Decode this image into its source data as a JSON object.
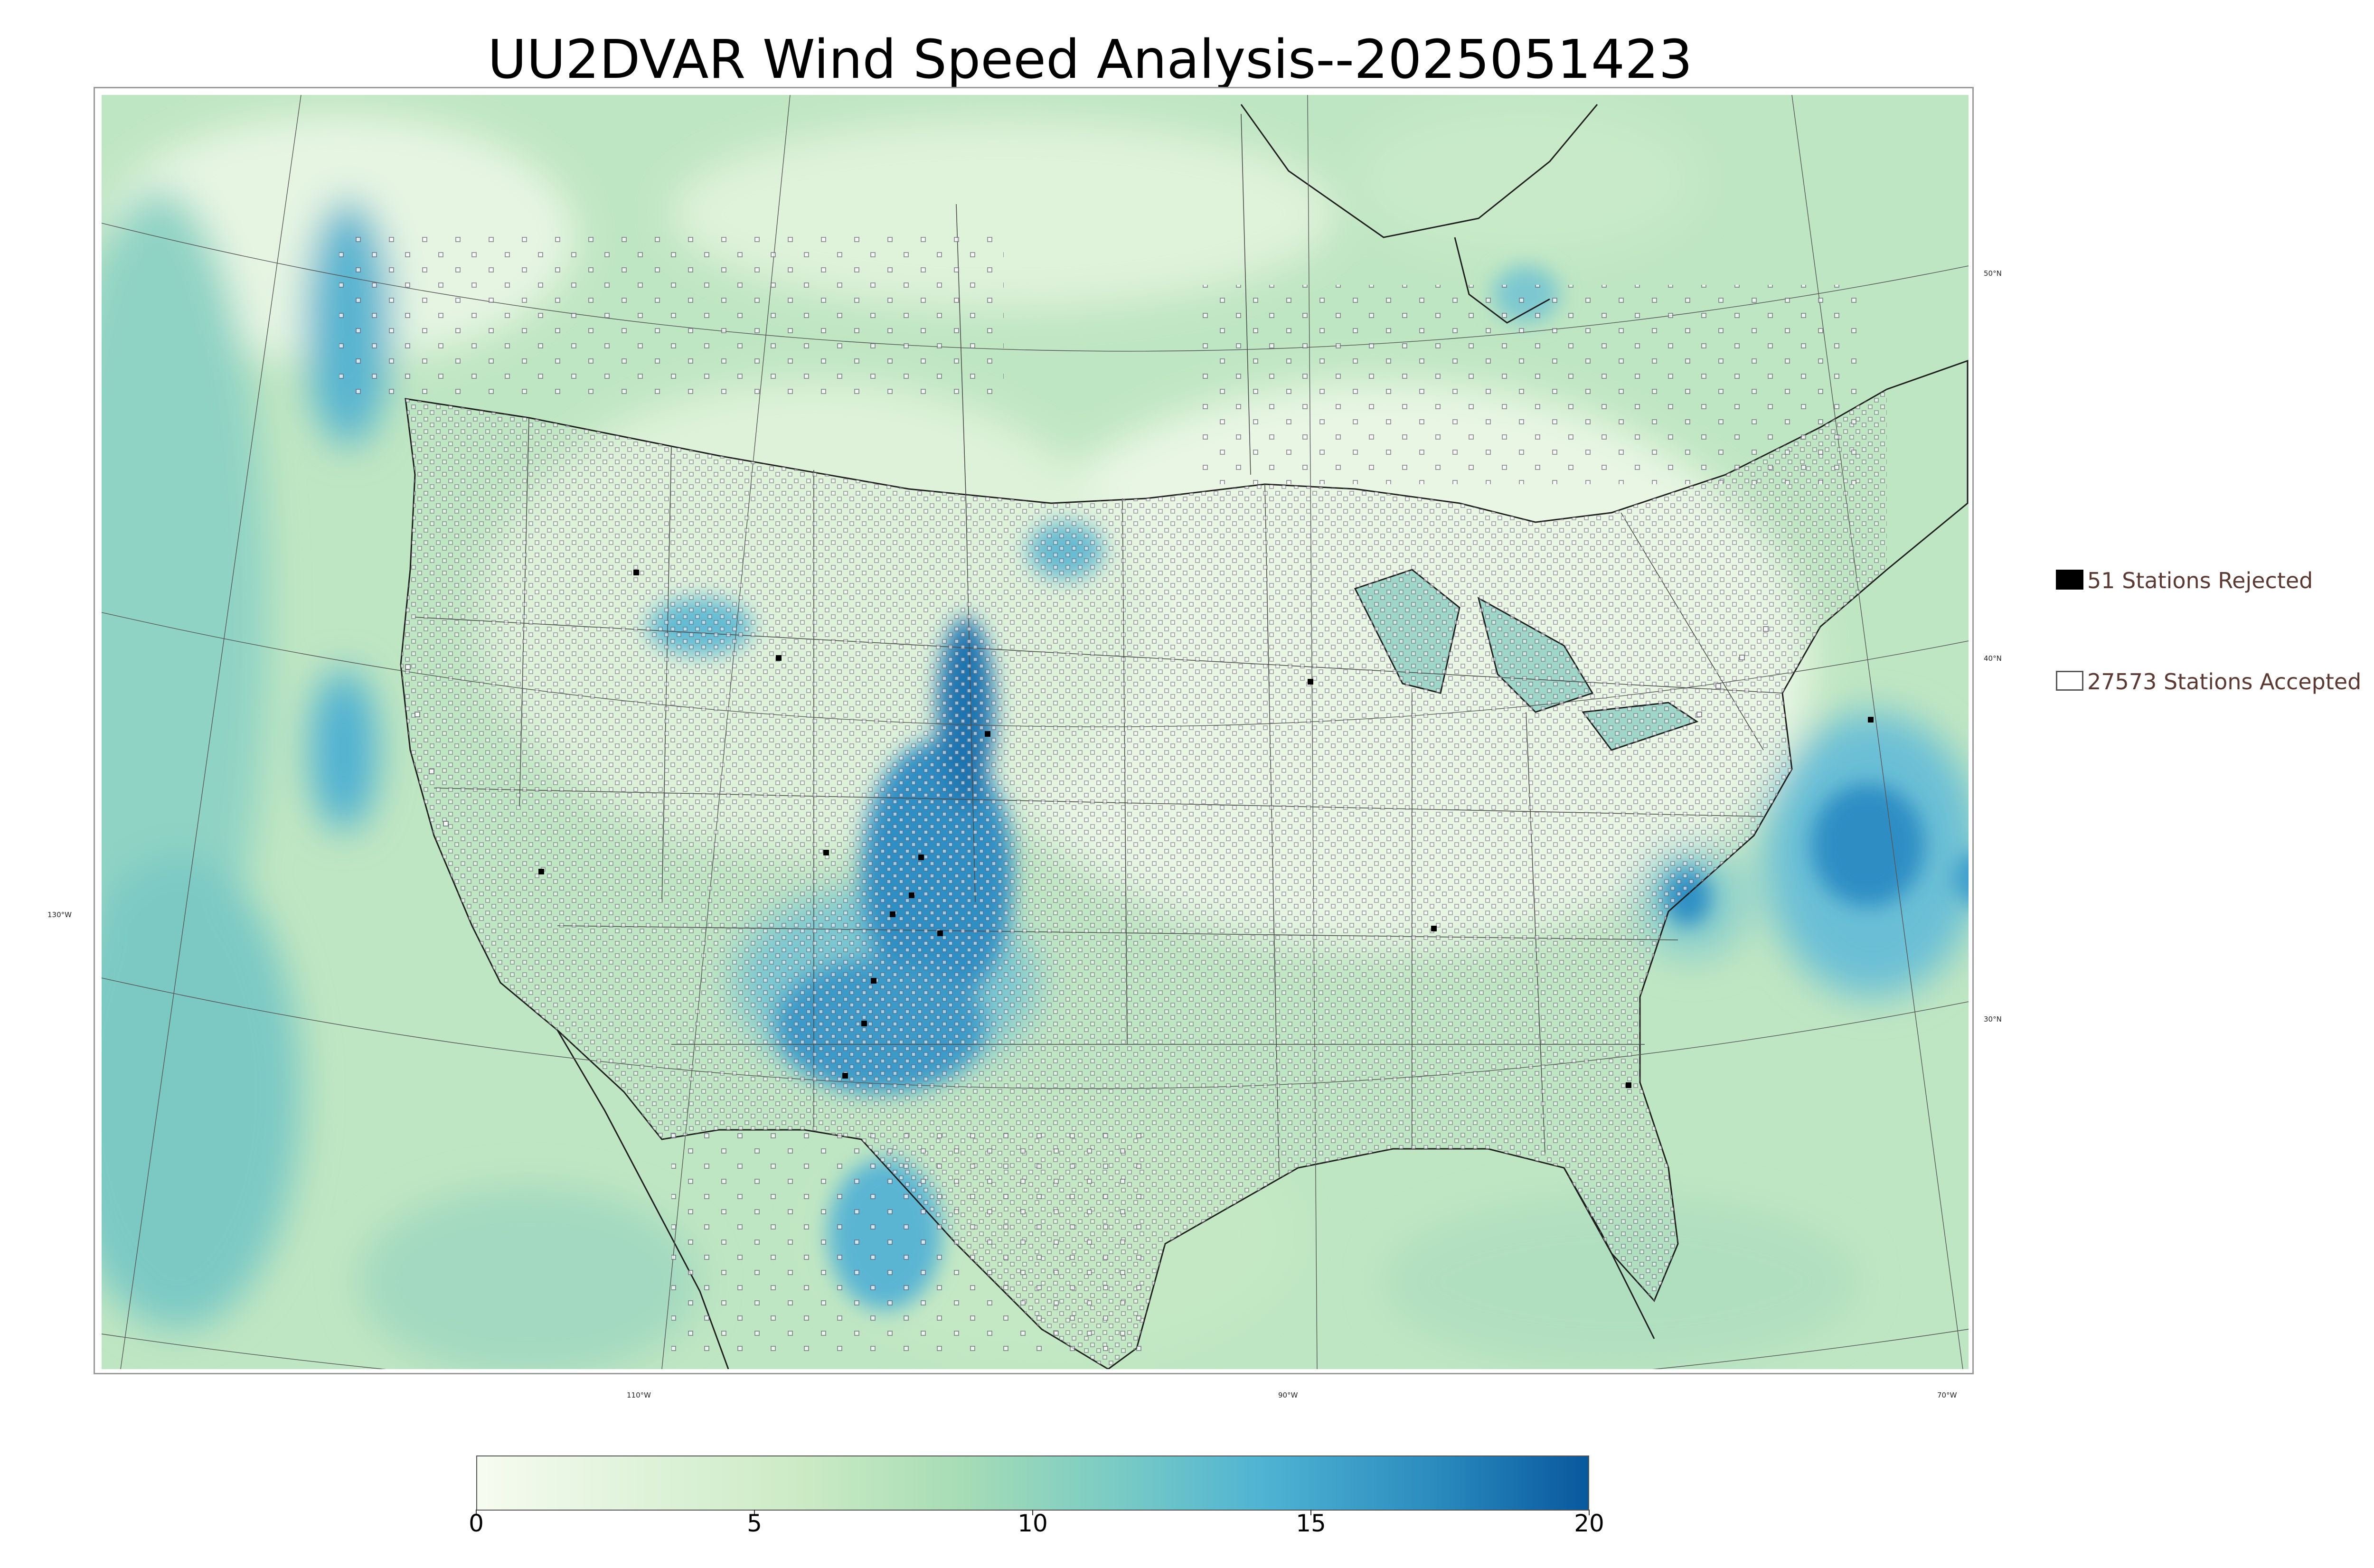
{
  "title": "UU2DVAR Wind Speed Analysis--2025051423",
  "map": {
    "projection": "lambert-conformal",
    "field": "wind-speed",
    "colormap": "GnBu",
    "palette": [
      "#f7fcf0",
      "#e0f3db",
      "#ccebc5",
      "#a8ddb5",
      "#7bccc4",
      "#4eb3d3",
      "#2b8cbe",
      "#08589e"
    ],
    "land_outline_color": "#000000",
    "station_accepted_color": "#ffffff",
    "station_rejected_color": "#000000",
    "latitude_labels": [
      "50°N",
      "40°N",
      "30°N"
    ],
    "longitude_labels": [
      "130°W",
      "110°W",
      "90°W",
      "70°W"
    ]
  },
  "legend": {
    "rejected": {
      "label": "51 Stations Rejected",
      "swatch_color": "#000000",
      "icon": "filled-square-icon"
    },
    "accepted": {
      "label": "27573 Stations Accepted",
      "swatch_color": "#ffffff",
      "icon": "hollow-square-icon"
    }
  },
  "colorbar": {
    "min": 0,
    "max": 20,
    "ticks": [
      "0",
      "5",
      "10",
      "15",
      "20"
    ],
    "colors": [
      "#f7fcf0",
      "#e0f3db",
      "#ccebc5",
      "#a8ddb5",
      "#7bccc4",
      "#4eb3d3",
      "#2b8cbe",
      "#08589e"
    ]
  }
}
